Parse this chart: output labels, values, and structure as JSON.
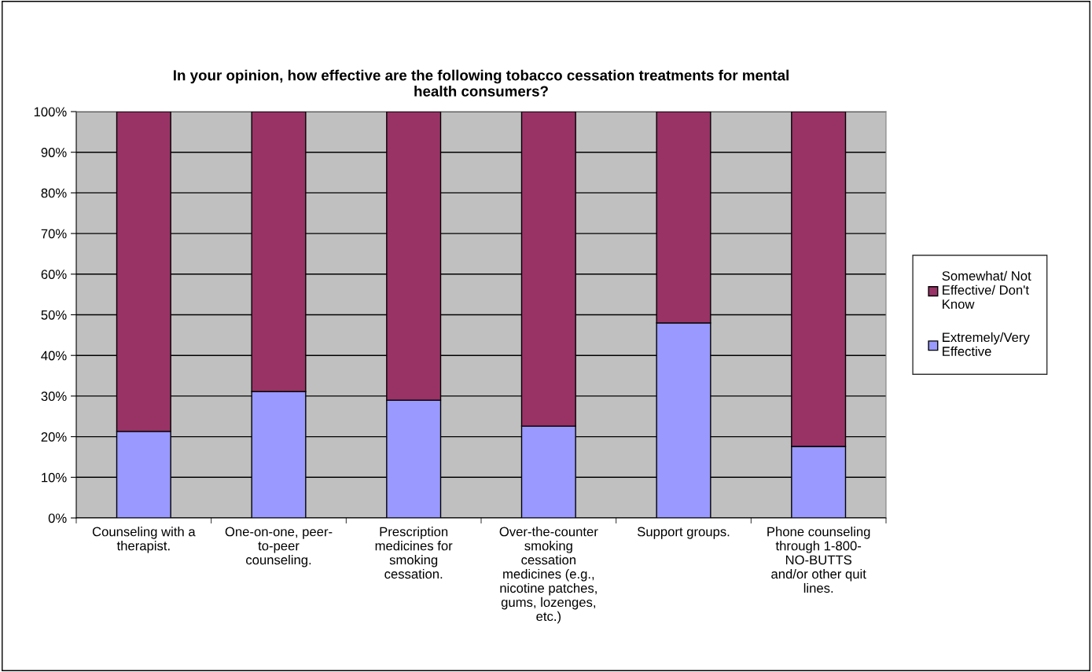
{
  "chart_data": {
    "type": "bar",
    "title": "In your opinion, how effective are the following tobacco cessation treatments for mental\nhealth consumers?",
    "categories": [
      "Counseling with a\ntherapist.",
      "One-on-one, peer-\nto-peer\ncounseling.",
      "Prescription\nmedicines for\nsmoking\ncessation.",
      "Over-the-counter\nsmoking\ncessation\nmedicines (e.g.,\nnicotine patches,\ngums, lozenges,\netc.)",
      "Support groups.",
      "Phone counseling\nthrough 1-800-\nNO-BUTTS\nand/or other quit\nlines."
    ],
    "stacked": true,
    "series": [
      {
        "name": "Extremely/Very\nEffective",
        "color": "#9999ff",
        "values": [
          21.3,
          31.1,
          29.0,
          22.6,
          48.0,
          17.6
        ]
      },
      {
        "name": "Somewhat/ Not\nEffective/ Don't\nKnow",
        "color": "#993366",
        "values": [
          78.7,
          68.9,
          71.0,
          77.4,
          52.0,
          82.4
        ]
      }
    ],
    "ylim": [
      0,
      100
    ],
    "yticks": [
      {
        "value": 0,
        "label": "0%"
      },
      {
        "value": 10,
        "label": "10%"
      },
      {
        "value": 20,
        "label": "20%"
      },
      {
        "value": 30,
        "label": "30%"
      },
      {
        "value": 40,
        "label": "40%"
      },
      {
        "value": 50,
        "label": "50%"
      },
      {
        "value": 60,
        "label": "60%"
      },
      {
        "value": 70,
        "label": "70%"
      },
      {
        "value": 80,
        "label": "80%"
      },
      {
        "value": 90,
        "label": "90%"
      },
      {
        "value": 100,
        "label": "100%"
      }
    ],
    "grid": "y",
    "legend": "right"
  }
}
